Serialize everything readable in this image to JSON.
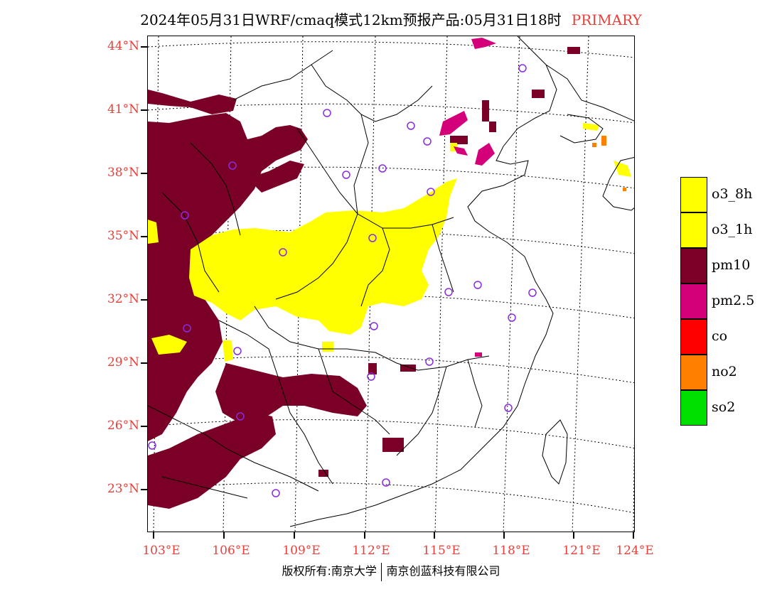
{
  "title": {
    "main": "2024年05月31日WRF/cmaq模式12km预报产品:05月31日18时",
    "tag": "PRIMARY"
  },
  "axes": {
    "lat_labels": [
      "44°N",
      "41°N",
      "38°N",
      "35°N",
      "32°N",
      "29°N",
      "26°N",
      "23°N"
    ],
    "lon_labels": [
      "103°E",
      "106°E",
      "109°E",
      "112°E",
      "115°E",
      "118°E",
      "121°E",
      "124°E"
    ]
  },
  "legend": [
    {
      "label": "o3_8h",
      "color": "#ffff00"
    },
    {
      "label": "o3_1h",
      "color": "#ffff00"
    },
    {
      "label": "pm10",
      "color": "#7a0028"
    },
    {
      "label": "pm2.5",
      "color": "#d4007a"
    },
    {
      "label": "co",
      "color": "#ff0000"
    },
    {
      "label": "no2",
      "color": "#ff7f00"
    },
    {
      "label": "so2",
      "color": "#00e000"
    }
  ],
  "colors": {
    "pm10": "#7a0028",
    "o3": "#ffff00",
    "pm25": "#d4007a",
    "no2": "#ff7f00",
    "station": "#8a2be2",
    "label_red": "#e8403a"
  },
  "footer": {
    "left": "版权所有:南京大学",
    "right": "南京创蓝科技有限公司"
  }
}
